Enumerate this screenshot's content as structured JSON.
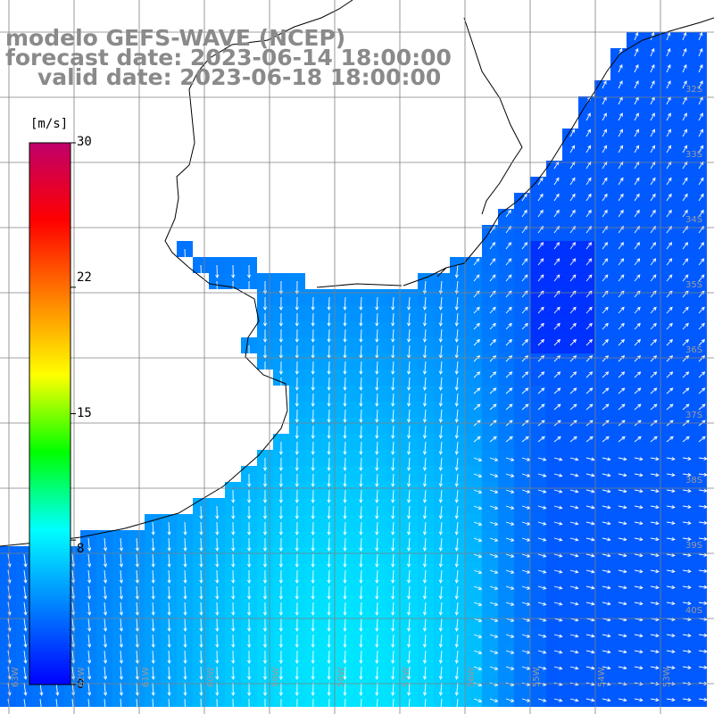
{
  "title": {
    "line1": "modelo GEFS-WAVE (NCEP)",
    "line2": "forecast date: 2023-06-14 18:00:00",
    "line3": "valid date: 2023-06-18 18:00:00"
  },
  "colorbar": {
    "unit": "[m/s]",
    "ticks": [
      {
        "label": "30",
        "value": 30
      },
      {
        "label": "22",
        "value": 22
      },
      {
        "label": "15",
        "value": 15
      },
      {
        "label": "8",
        "value": 8
      },
      {
        "label": "0",
        "value": 0
      }
    ],
    "min": 0,
    "max": 30,
    "colors": [
      "#0000ff",
      "#0080ff",
      "#00ffff",
      "#00ff00",
      "#ffff00",
      "#ff8000",
      "#ff0000",
      "#c0006a"
    ]
  },
  "map": {
    "lat_labels": [
      "32S",
      "33S",
      "34S",
      "35S",
      "36S",
      "37S",
      "38S",
      "39S",
      "40S"
    ],
    "lon_labels": [
      "63W",
      "62W",
      "61W",
      "60W",
      "59W",
      "58W",
      "57W",
      "56W",
      "55W",
      "54W",
      "53W"
    ],
    "land_color": "#ffffff",
    "grid_color": "#808080"
  }
}
